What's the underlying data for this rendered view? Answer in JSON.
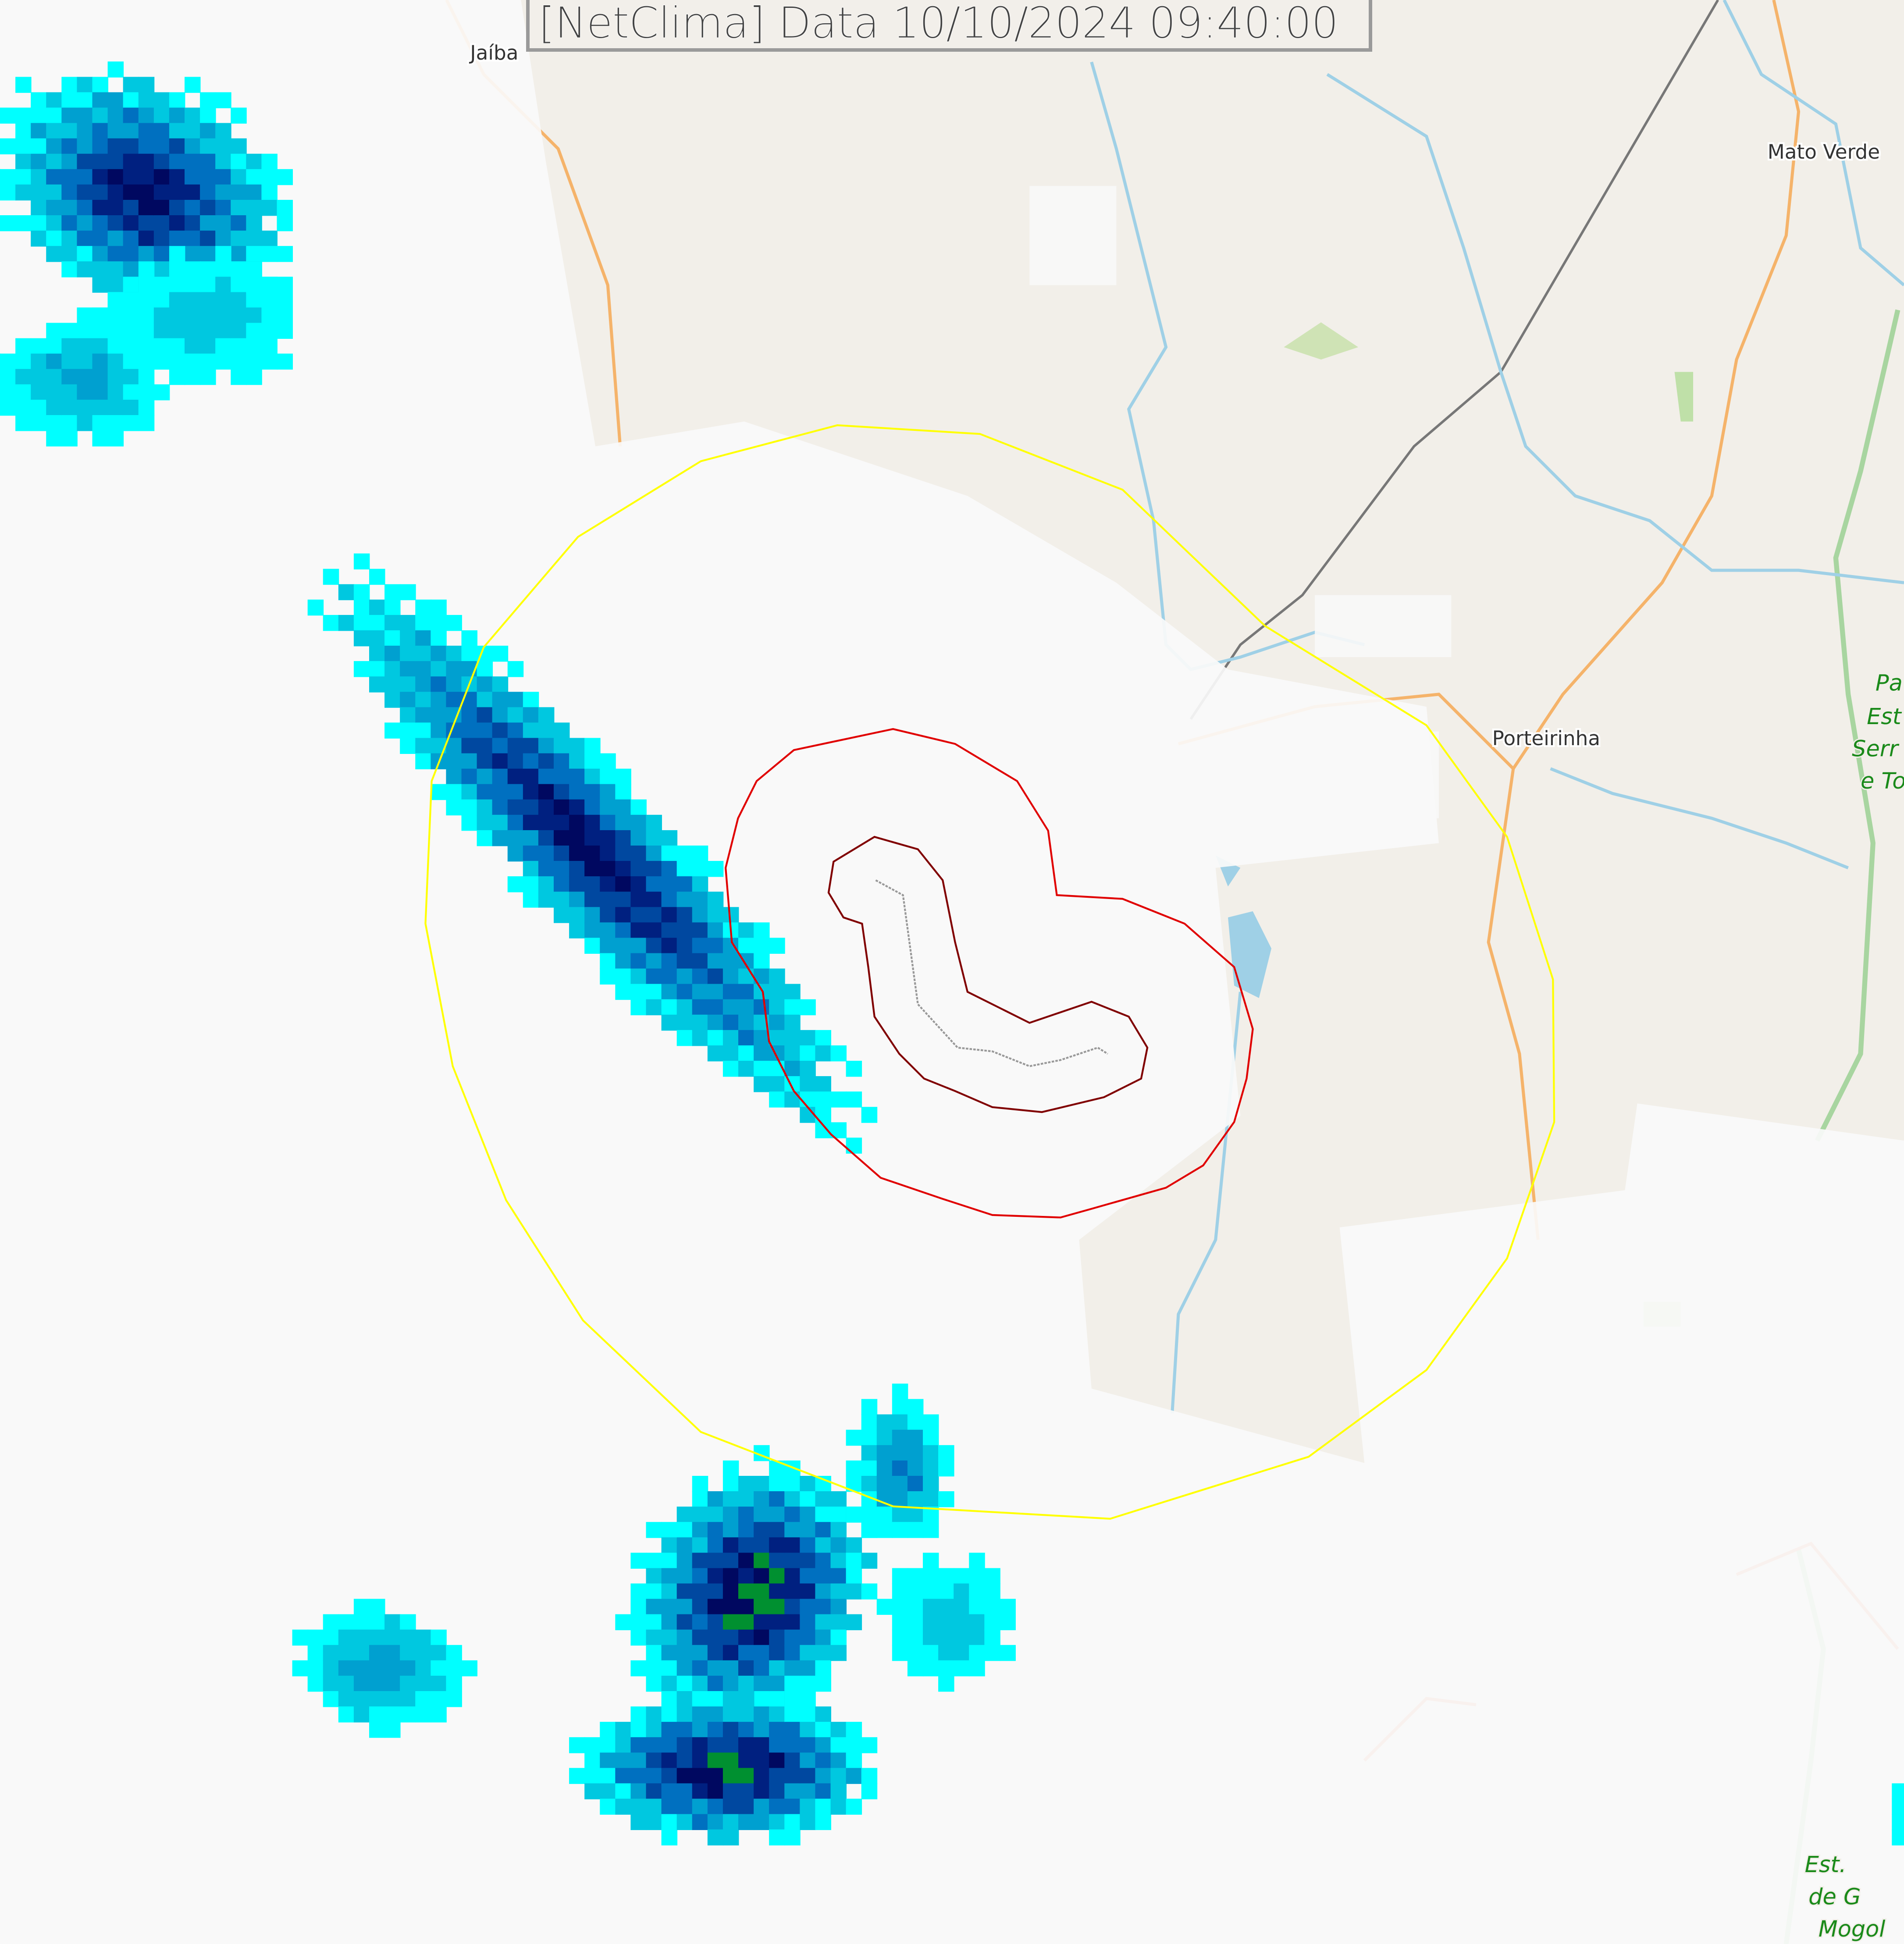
{
  "title": "[NetClima] Data 10/10/2024 09:40:00",
  "places": [
    {
      "name": "Jaíba"
    },
    {
      "name": "Mato Verde"
    },
    {
      "name": "Porteirinha"
    }
  ],
  "parks": [
    {
      "lines": [
        "Pa",
        "Est",
        "Serr",
        "e To"
      ]
    },
    {
      "lines": [
        "Est.",
        "de G",
        "Mogol"
      ]
    }
  ],
  "colors": {
    "map_background": "#f2efe9",
    "road": "#f5b36a",
    "river": "#9fd0e6",
    "railway": "#777777",
    "outer_contour": "#ffff00",
    "mid_contour": "#e00000",
    "inner_contour": "#800000",
    "radar_scale": [
      "#00ffff",
      "#00c8e0",
      "#00a0d0",
      "#0070c0",
      "#0048a0",
      "#002080",
      "#000860",
      "#003050",
      "#009030"
    ]
  }
}
